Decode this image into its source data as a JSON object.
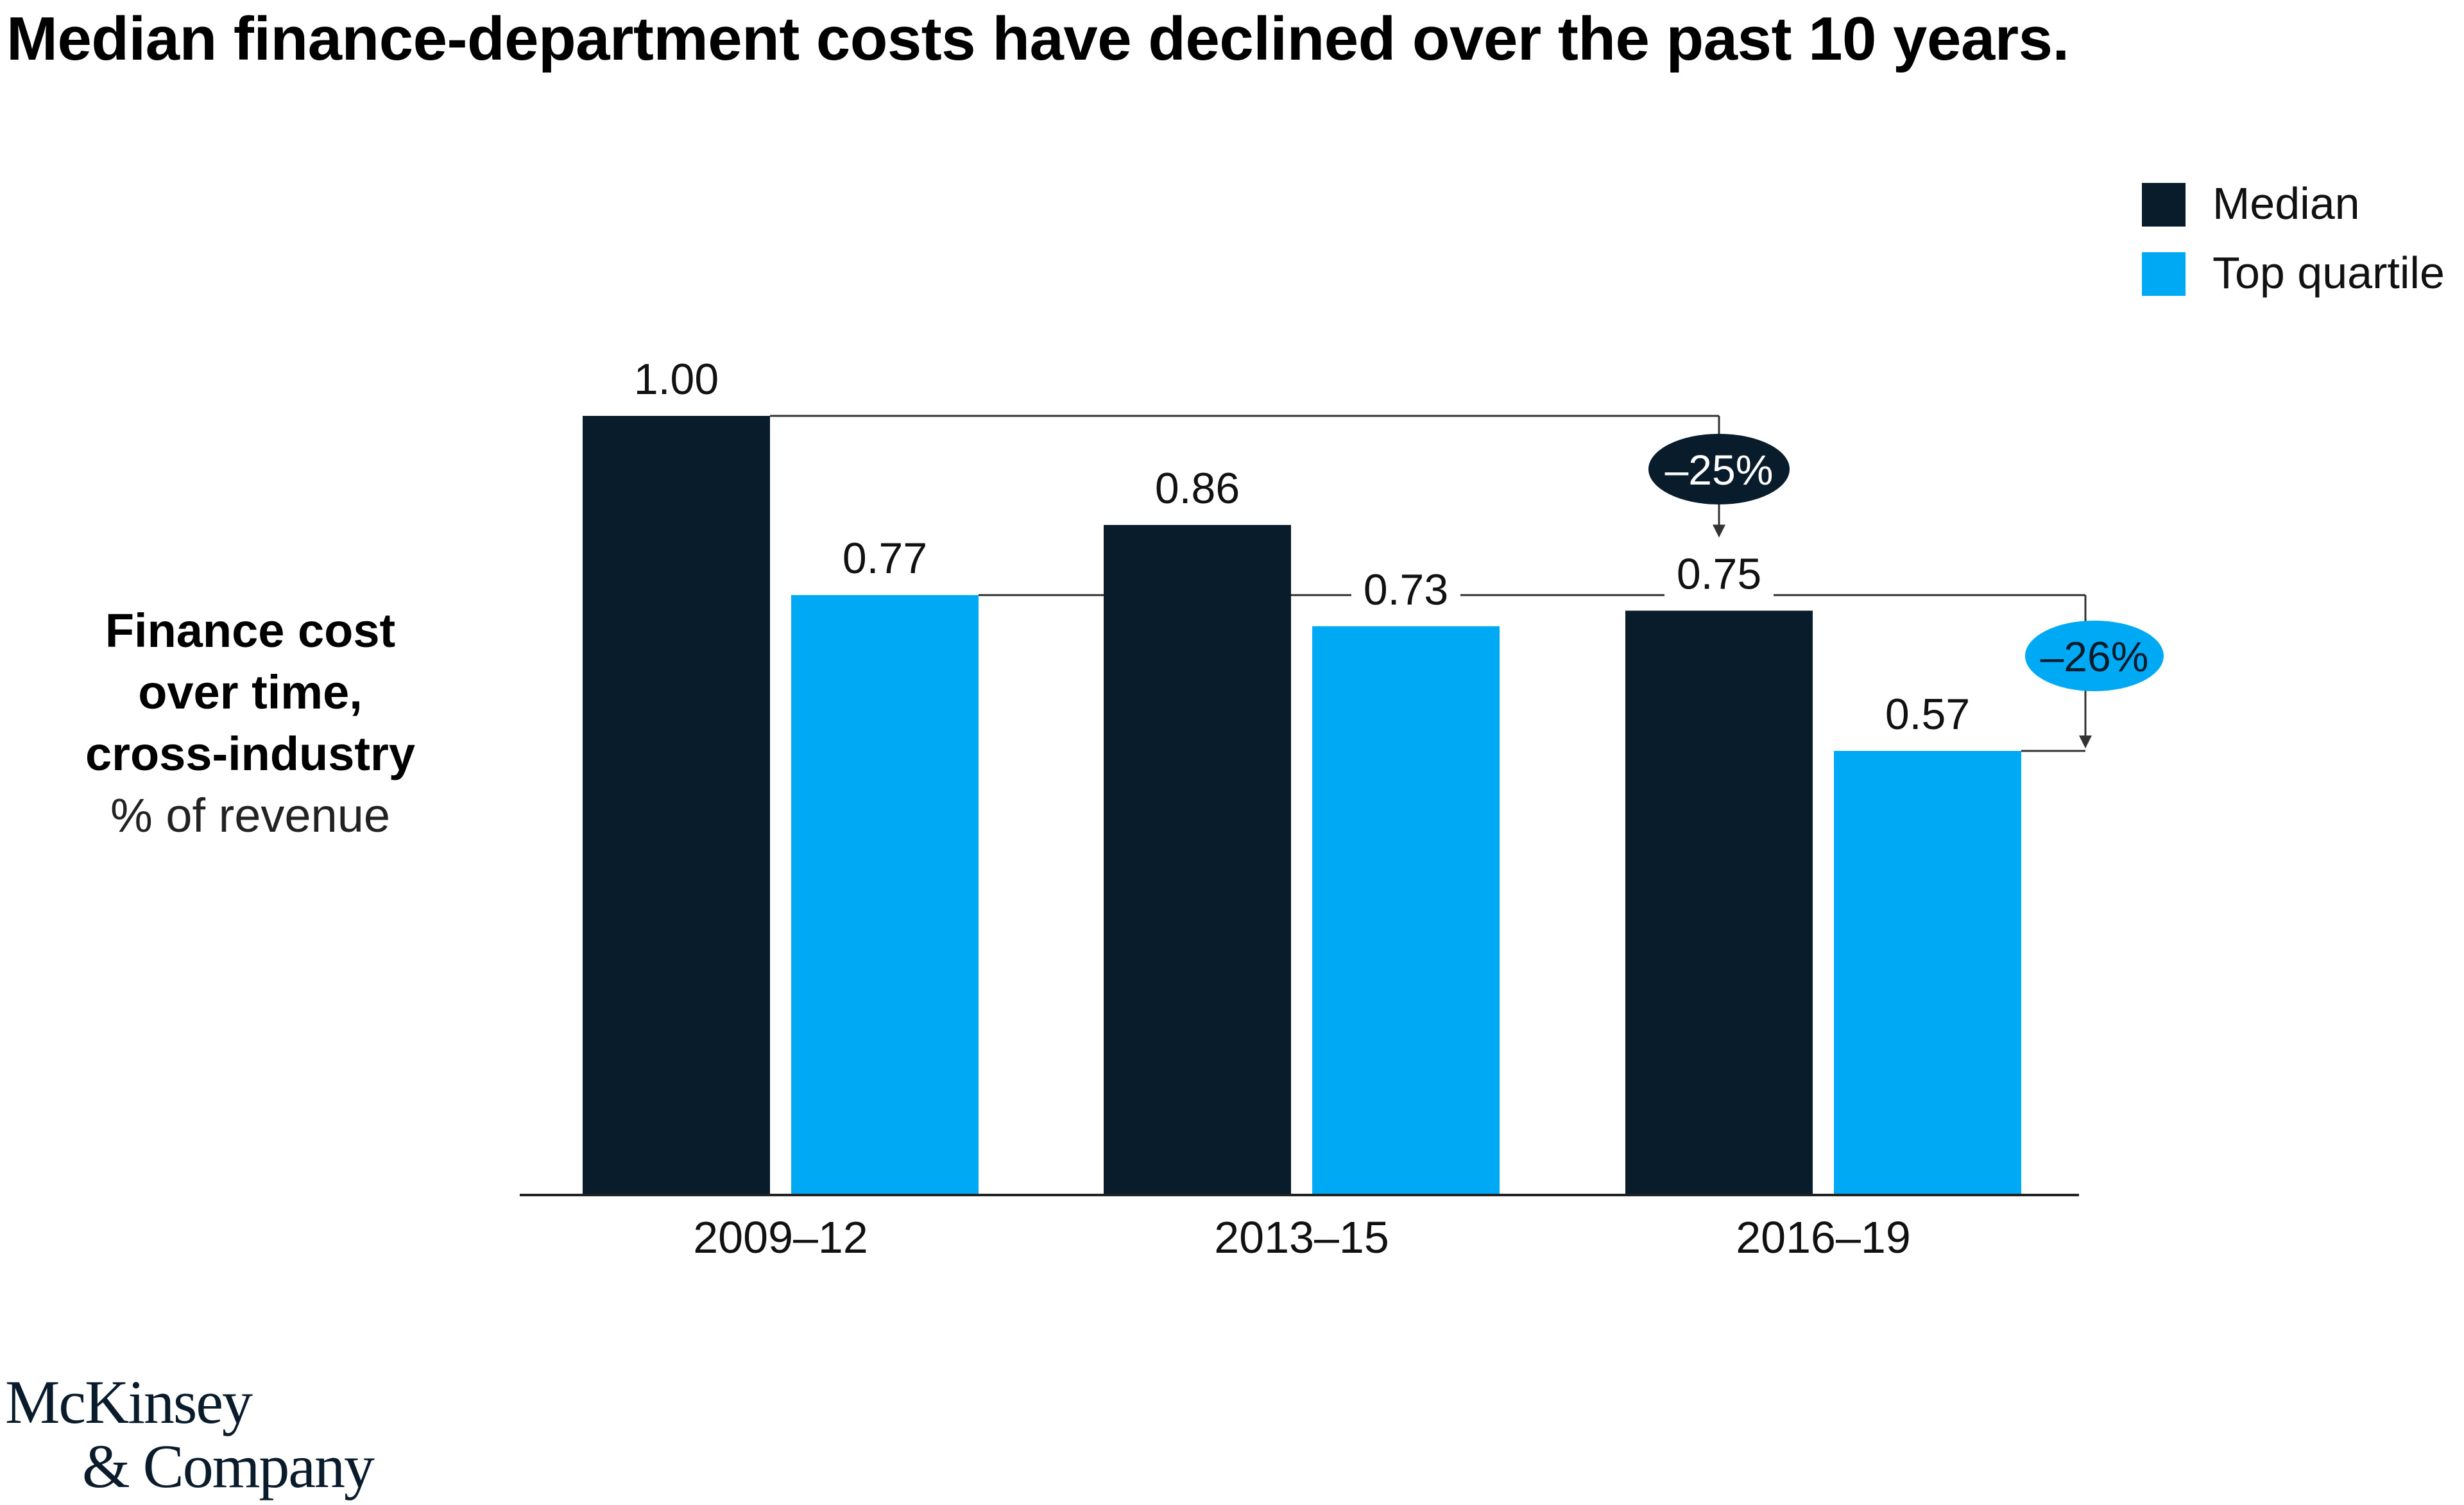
{
  "title": "Median finance-department costs have declined over the past 10 years.",
  "y_axis_title": {
    "lines": [
      "Finance cost",
      "over time,",
      "cross-industry"
    ],
    "unit": "% of revenue"
  },
  "legend": [
    {
      "label": "Median",
      "color": "#081c2b"
    },
    {
      "label": "Top quartile",
      "color": "#00a9f4"
    }
  ],
  "colors": {
    "median": "#081c2b",
    "top_quartile": "#00a9f4",
    "axis": "#222222",
    "connector": "#333333",
    "text": "#111111"
  },
  "chart_data": {
    "type": "bar",
    "title": "Median finance-department costs have declined over the past 10 years.",
    "ylabel": "Finance cost over time, cross-industry, % of revenue",
    "xlabel": "",
    "categories": [
      "2009–12",
      "2013–15",
      "2016–19"
    ],
    "series": [
      {
        "name": "Median",
        "values": [
          1.0,
          0.86,
          0.75
        ],
        "labels": [
          "1.00",
          "0.86",
          "0.75"
        ]
      },
      {
        "name": "Top quartile",
        "values": [
          0.77,
          0.73,
          0.57
        ],
        "labels": [
          "0.77",
          "0.73",
          "0.57"
        ]
      }
    ],
    "ylim": [
      0,
      1.0
    ],
    "grid": false,
    "legend_position": "top-right",
    "annotations": [
      {
        "text": "–25%",
        "series": "Median",
        "from": "2009–12",
        "to": "2016–19"
      },
      {
        "text": "–26%",
        "series": "Top quartile",
        "from": "2009–12",
        "to": "2016–19"
      }
    ]
  },
  "logo": {
    "line1": "McKinsey",
    "line2": "& Company"
  }
}
